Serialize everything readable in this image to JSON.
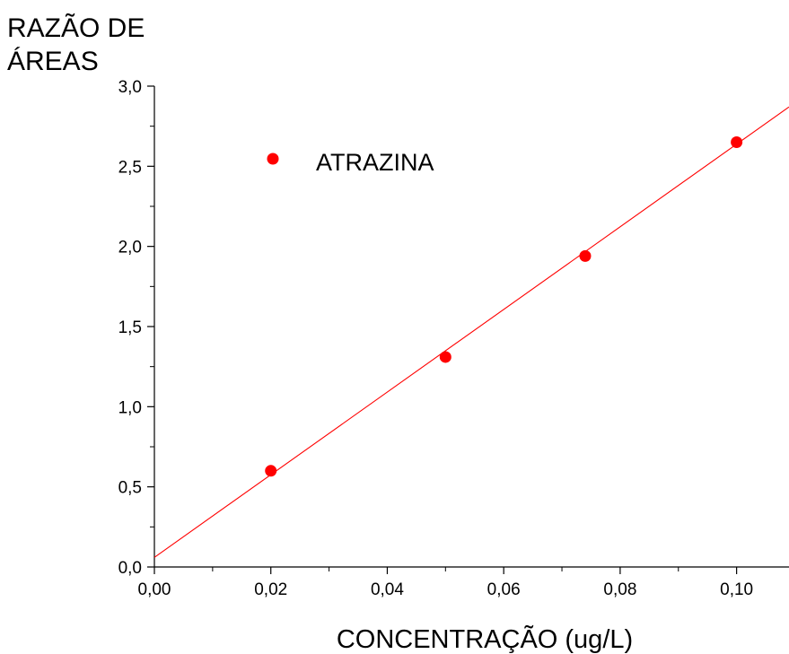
{
  "chart_data": {
    "type": "scatter",
    "ylabel_lines": [
      "RAZÃO DE",
      "ÁREAS"
    ],
    "xlabel": "CONCENTRAÇÃO (ug/L)",
    "xlim": [
      0,
      0.109
    ],
    "ylim": [
      0,
      3.0
    ],
    "x_ticks": [
      0,
      0.02,
      0.04,
      0.06,
      0.08,
      0.1
    ],
    "x_tick_labels": [
      "0,00",
      "0,02",
      "0,04",
      "0,06",
      "0,08",
      "0,10"
    ],
    "y_ticks": [
      0,
      0.5,
      1.0,
      1.5,
      2.0,
      2.5,
      3.0
    ],
    "y_tick_labels": [
      "0,0",
      "0,5",
      "1,0",
      "1,5",
      "2,0",
      "2,5",
      "3,0"
    ],
    "grid": false,
    "legend_position": "top-left",
    "series": [
      {
        "name": "ATRAZINA",
        "color": "#ff0000",
        "marker": "circle",
        "x": [
          0.02,
          0.05,
          0.074,
          0.1
        ],
        "y": [
          0.6,
          1.31,
          1.94,
          2.65
        ]
      }
    ],
    "fit_line": {
      "color": "#ff0000",
      "x": [
        0,
        0.109
      ],
      "y": [
        0.06,
        2.87
      ]
    }
  }
}
